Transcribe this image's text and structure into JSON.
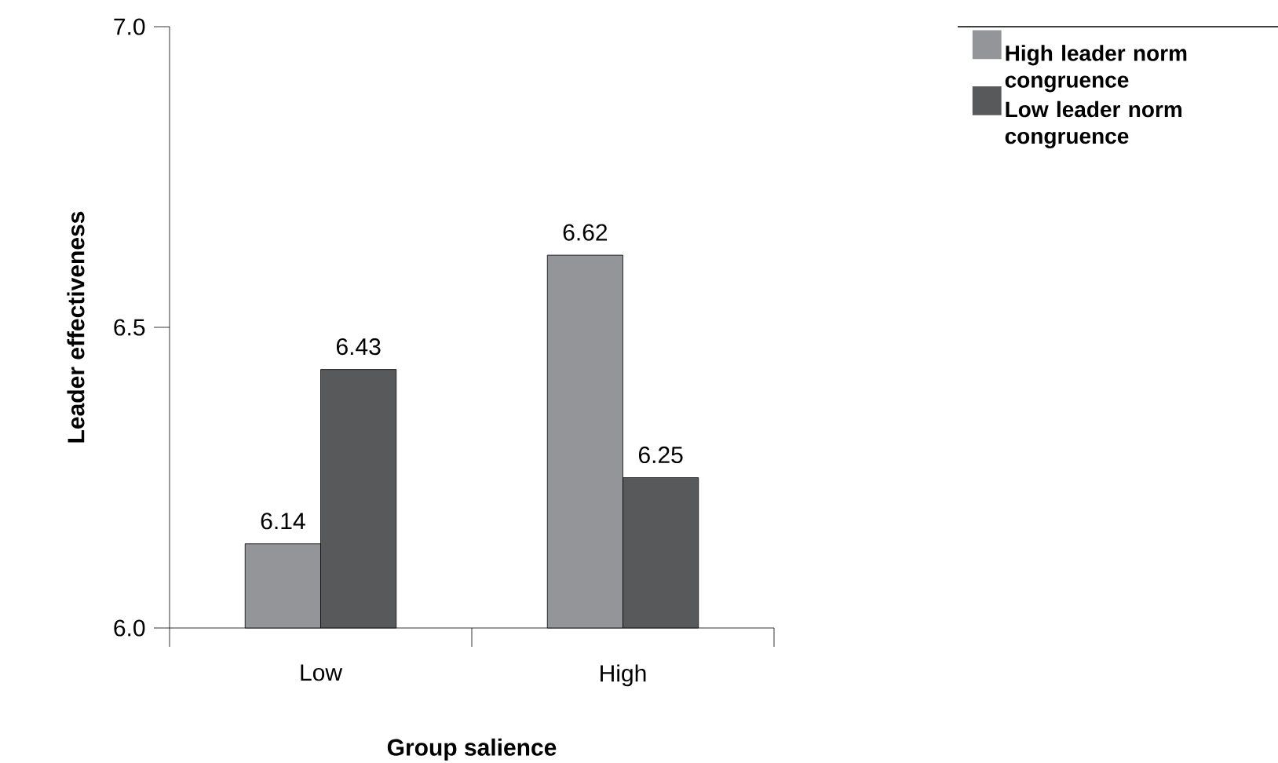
{
  "chart_data": {
    "type": "bar",
    "xlabel": "Group salience",
    "ylabel": "Leader effectiveness",
    "categories": [
      "Low",
      "High"
    ],
    "series": [
      {
        "name": "High leader norm congruence",
        "color": "#939598",
        "values": [
          6.14,
          6.62
        ]
      },
      {
        "name": "Low leader norm congruence",
        "color": "#58595b",
        "values": [
          6.43,
          6.25
        ]
      }
    ],
    "ylim": [
      6,
      7
    ],
    "yticks": [
      {
        "value": 6,
        "label": "6.0"
      },
      {
        "value": 6.5,
        "label": "6.5"
      },
      {
        "value": 7,
        "label": "7.0"
      }
    ],
    "legend": "top right",
    "data_labels": true
  }
}
